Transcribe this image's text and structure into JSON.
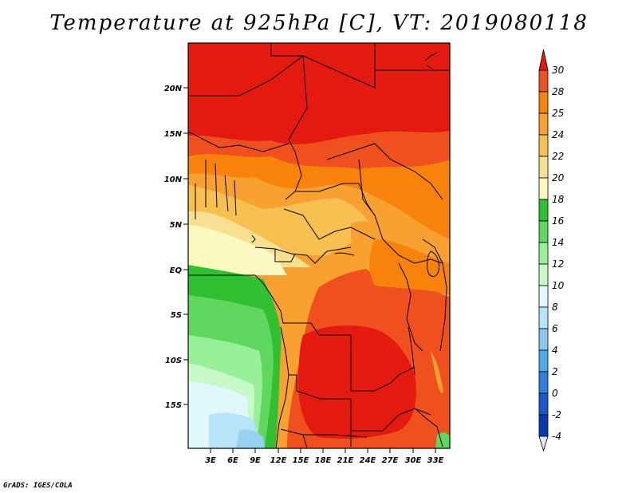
{
  "title": "Temperature at 925hPa [C], VT: 2019080118",
  "credit": "GrADS: IGES/COLA",
  "map": {
    "lat_labels": [
      "20N",
      "15N",
      "10N",
      "5N",
      "EQ",
      "5S",
      "10S",
      "15S"
    ],
    "lon_labels": [
      "3E",
      "6E",
      "9E",
      "12E",
      "15E",
      "18E",
      "21E",
      "24E",
      "27E",
      "30E",
      "33E"
    ]
  },
  "colorbar": {
    "labels": [
      "30",
      "28",
      "25",
      "24",
      "22",
      "20",
      "18",
      "16",
      "14",
      "12",
      "10",
      "8",
      "6",
      "4",
      "2",
      "0",
      "-2",
      "-4"
    ],
    "colors": [
      "#e41a10",
      "#f0501e",
      "#f8820a",
      "#f8a030",
      "#f8c050",
      "#f8e090",
      "#fbf8c0",
      "#30c030",
      "#60d860",
      "#98f098",
      "#c8fac8",
      "#e0f8fc",
      "#b8e4f8",
      "#88c8f0",
      "#50a8e8",
      "#3080e0",
      "#1858d0",
      "#0838b0",
      "#061a78"
    ]
  }
}
